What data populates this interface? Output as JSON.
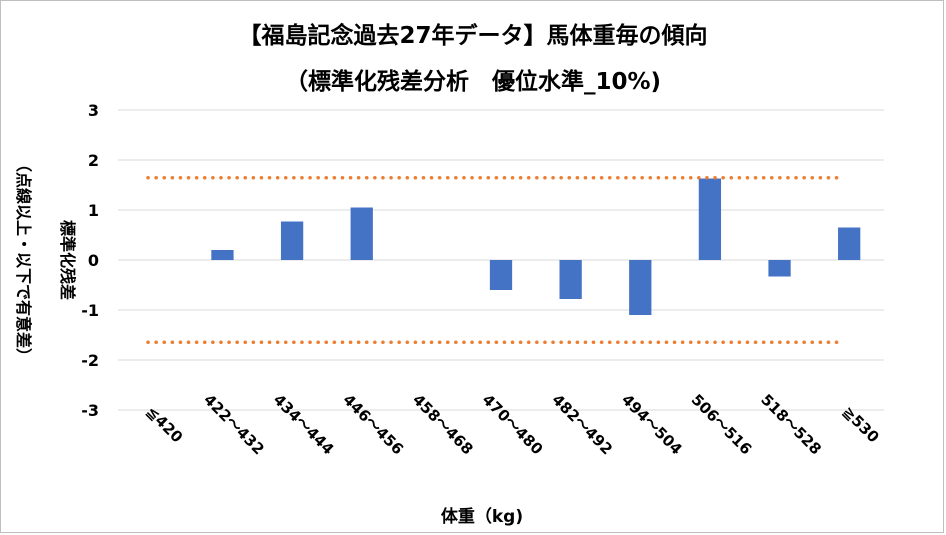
{
  "chart_data": {
    "type": "bar",
    "title": "【福島記念過去27年データ】馬体重毎の傾向",
    "subtitle": "（標準化残差分析　優位水準_10%)",
    "xlabel": "体重（kg)",
    "ylabel": "標準化残差",
    "ylabel_note": "（点線以上・以下で有意差）",
    "ylim": [
      -3,
      3
    ],
    "yticks": [
      "3",
      "2",
      "1",
      "0",
      "-1",
      "-2",
      "-3"
    ],
    "grid": true,
    "threshold": 1.645,
    "threshold_color": "#ED7D31",
    "bar_color": "#4472C4",
    "categories": [
      "≦420",
      "422～432",
      "434～444",
      "446～456",
      "458～468",
      "470～480",
      "482～492",
      "494～504",
      "506～516",
      "518～528",
      "≧530"
    ],
    "values": [
      0,
      0.2,
      0.77,
      1.05,
      0,
      -0.6,
      -0.78,
      -1.1,
      1.63,
      -0.33,
      0.65
    ]
  }
}
